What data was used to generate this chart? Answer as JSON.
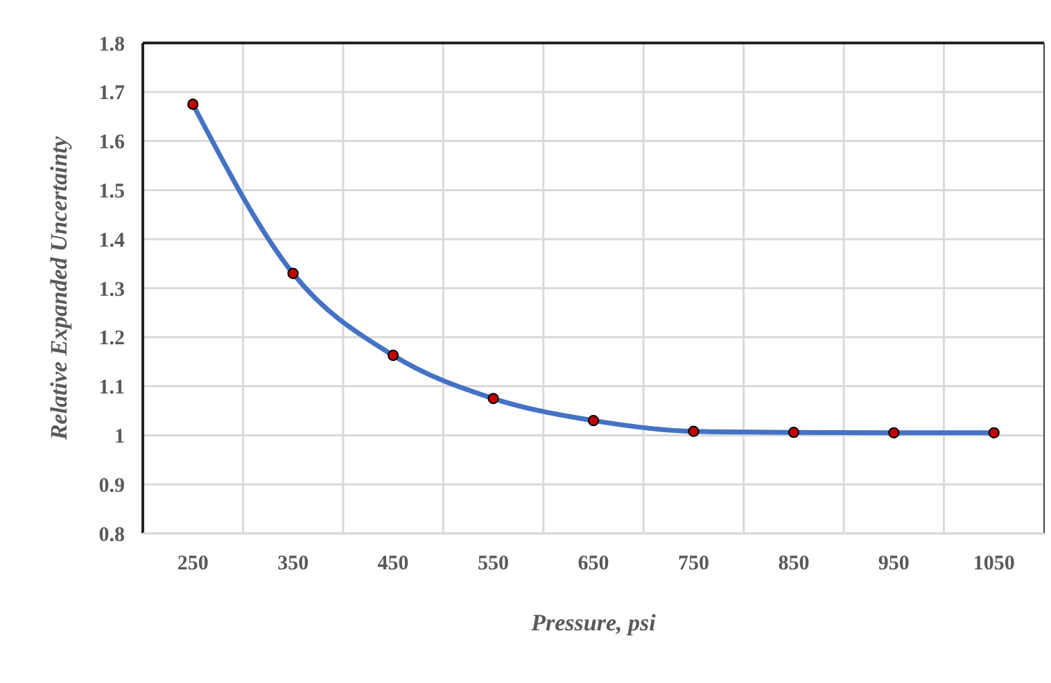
{
  "chart_data": {
    "type": "line",
    "xlabel": "Pressure, psi",
    "ylabel": "Relative Expanded Uncertainty",
    "categories": [
      "250",
      "350",
      "450",
      "550",
      "650",
      "750",
      "850",
      "950",
      "1050"
    ],
    "series": [
      {
        "color": "#4472c4",
        "values": [
          1.675,
          1.33,
          1.163,
          1.075,
          1.03,
          1.008,
          1.006,
          1.005,
          1.005
        ]
      }
    ],
    "ylim": [
      0.8,
      1.8
    ],
    "yticks": [
      0.8,
      0.9,
      1,
      1.1,
      1.2,
      1.3,
      1.4,
      1.5,
      1.6,
      1.7,
      1.8
    ],
    "grid": true,
    "marker": "circle",
    "line_style": "solid"
  }
}
